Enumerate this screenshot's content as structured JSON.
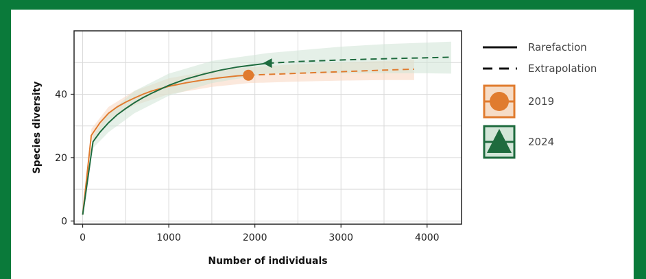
{
  "chart_data": {
    "type": "line",
    "xlabel": "Number of individuals",
    "ylabel": "Species diversity",
    "xlim": [
      -100,
      4400
    ],
    "ylim": [
      -1,
      60
    ],
    "x_ticks": [
      0,
      1000,
      2000,
      3000,
      4000
    ],
    "y_ticks": [
      0,
      20,
      40
    ],
    "grid": true,
    "legend_position": "right",
    "line_styles": [
      {
        "name": "Rarefaction",
        "style": "solid"
      },
      {
        "name": "Extrapolation",
        "style": "dashed"
      }
    ],
    "series": [
      {
        "name": "2019",
        "color": "#e07b2e",
        "marker": "circle",
        "rarefaction": [
          [
            0,
            2
          ],
          [
            100,
            27
          ],
          [
            200,
            31
          ],
          [
            300,
            34
          ],
          [
            400,
            36
          ],
          [
            500,
            37.5
          ],
          [
            600,
            38.8
          ],
          [
            700,
            40
          ],
          [
            800,
            41
          ],
          [
            1000,
            42.5
          ],
          [
            1200,
            43.6
          ],
          [
            1400,
            44.5
          ],
          [
            1600,
            45.2
          ],
          [
            1800,
            45.8
          ],
          [
            1925,
            46
          ]
        ],
        "extrapolation": [
          [
            1925,
            46
          ],
          [
            2500,
            46.6
          ],
          [
            3000,
            47.1
          ],
          [
            3500,
            47.6
          ],
          [
            3850,
            47.9
          ]
        ],
        "band_upper": [
          [
            100,
            29
          ],
          [
            300,
            36
          ],
          [
            600,
            41
          ],
          [
            1000,
            45
          ],
          [
            1500,
            47.5
          ],
          [
            1925,
            48.5
          ],
          [
            2500,
            49.5
          ],
          [
            3000,
            50
          ],
          [
            3500,
            50.5
          ],
          [
            3850,
            51
          ]
        ],
        "band_lower": [
          [
            100,
            25
          ],
          [
            300,
            32
          ],
          [
            600,
            36.5
          ],
          [
            1000,
            40
          ],
          [
            1500,
            42.3
          ],
          [
            1925,
            43.5
          ],
          [
            2500,
            44
          ],
          [
            3000,
            44.3
          ],
          [
            3500,
            44.5
          ],
          [
            3850,
            44.5
          ]
        ]
      },
      {
        "name": "2024",
        "color": "#1e6b3e",
        "marker": "triangle",
        "rarefaction": [
          [
            0,
            2
          ],
          [
            120,
            25
          ],
          [
            200,
            28
          ],
          [
            300,
            31
          ],
          [
            400,
            33.5
          ],
          [
            500,
            35.5
          ],
          [
            600,
            37.3
          ],
          [
            700,
            38.9
          ],
          [
            800,
            40.3
          ],
          [
            1000,
            42.8
          ],
          [
            1200,
            44.8
          ],
          [
            1400,
            46.3
          ],
          [
            1600,
            47.6
          ],
          [
            1800,
            48.6
          ],
          [
            2000,
            49.3
          ],
          [
            2150,
            49.8
          ]
        ],
        "extrapolation": [
          [
            2150,
            49.8
          ],
          [
            2500,
            50.3
          ],
          [
            3000,
            50.8
          ],
          [
            3500,
            51.2
          ],
          [
            4000,
            51.5
          ],
          [
            4280,
            51.7
          ]
        ],
        "band_upper": [
          [
            120,
            27
          ],
          [
            300,
            34
          ],
          [
            600,
            41
          ],
          [
            1000,
            46.5
          ],
          [
            1500,
            50.5
          ],
          [
            2150,
            53
          ],
          [
            3000,
            55
          ],
          [
            3500,
            55.8
          ],
          [
            4000,
            56.3
          ],
          [
            4280,
            56.6
          ]
        ],
        "band_lower": [
          [
            120,
            23
          ],
          [
            300,
            28
          ],
          [
            600,
            34
          ],
          [
            1000,
            39.5
          ],
          [
            1500,
            43.5
          ],
          [
            2150,
            46.5
          ],
          [
            3000,
            46.6
          ],
          [
            3500,
            46.6
          ],
          [
            4000,
            46.6
          ],
          [
            4280,
            46.5
          ]
        ]
      }
    ]
  }
}
